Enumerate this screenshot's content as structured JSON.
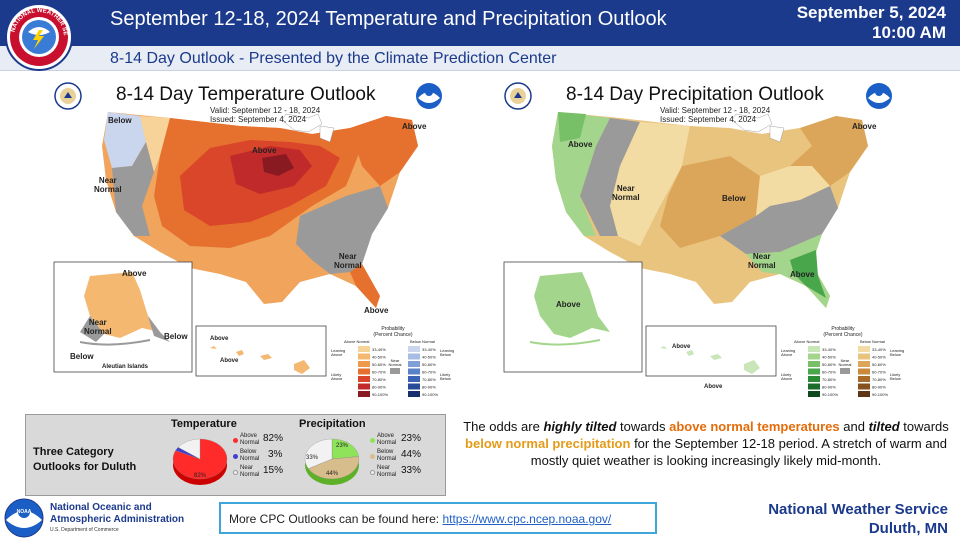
{
  "header": {
    "title": "September 12-18, 2024 Temperature  and Precipitation Outlook",
    "date": "September 5, 2024",
    "time": "10:00 AM",
    "subtitle": "8-14 Day Outlook - Presented by the Climate Prediction Center",
    "logo_text": "NATIONAL WEATHER SERVICE"
  },
  "temp_map": {
    "title": "8-14 Day Temperature Outlook",
    "valid": "Valid:  September 12 - 18, 2024",
    "issued": "Issued:  September 4, 2024",
    "labels": {
      "below_nw": "Below",
      "near_w": "Near\nNormal",
      "above_mw": "Above",
      "above_ne": "Above",
      "near_se": "Near\nNormal",
      "above_fl": "Above",
      "ak_above": "Above",
      "ak_near": "Near\nNormal",
      "ak_below_s": "Below",
      "ak_below_e": "Below",
      "aleutian": "Aleutian Islands",
      "hi_above_1": "Above",
      "hi_above_2": "Above"
    },
    "legend": {
      "title": "Probability\n(Percent Chance)",
      "left_head": "Above Normal",
      "right_head": "Below Normal",
      "near": "Near\nNormal",
      "leaning_above": "Leaning\nAbove",
      "likely_above": "Likely\nAbove",
      "leaning_below": "Leaning\nBelow",
      "likely_below": "Likely\nBelow",
      "steps": [
        "33-40%",
        "40-50%",
        "50-60%",
        "60-70%",
        "70-80%",
        "80-90%",
        "90-100%"
      ],
      "above_colors": [
        "#f7d39a",
        "#f4b870",
        "#ef9a4a",
        "#e6702e",
        "#d9462a",
        "#c02a2a",
        "#8a1a22"
      ],
      "below_colors": [
        "#c9d6ee",
        "#a8bde4",
        "#7f9fd6",
        "#5a82c8",
        "#3a63b3",
        "#274b96",
        "#182f6e"
      ]
    }
  },
  "precip_map": {
    "title": "8-14 Day Precipitation Outlook",
    "valid": "Valid:  September 12 - 18, 2024",
    "issued": "Issued:  September 4, 2024",
    "labels": {
      "above_nw": "Above",
      "near_w": "Near\nNormal",
      "below_c": "Below",
      "above_ne": "Above",
      "near_se": "Near\nNormal",
      "above_se": "Above",
      "ak_above": "Above",
      "hi_above_1": "Above",
      "hi_above_2": "Above"
    },
    "legend": {
      "title": "Probability\n(Percent Chance)",
      "left_head": "Above Normal",
      "right_head": "Below Normal",
      "near": "Near\nNormal",
      "leaning_above": "Leaning\nAbove",
      "likely_above": "Likely\nAbove",
      "leaning_below": "Leaning\nBelow",
      "likely_below": "Likely\nBelow",
      "steps": [
        "33-40%",
        "40-50%",
        "50-60%",
        "60-70%",
        "70-80%",
        "80-90%",
        "90-100%"
      ],
      "above_colors": [
        "#c8e6b8",
        "#a3d68c",
        "#77c067",
        "#4aa64a",
        "#2b8a36",
        "#1b6b2a",
        "#0f4a1e"
      ],
      "below_colors": [
        "#f3dca3",
        "#e9c47e",
        "#dca65a",
        "#c98a3c",
        "#a86b2a",
        "#87511f",
        "#5e3614"
      ]
    }
  },
  "duluth": {
    "caption": "Three Category\nOutlooks for Duluth",
    "temperature": {
      "title": "Temperature",
      "slices": [
        {
          "label": "Above Normal",
          "value": 82,
          "color": "#ff2b2b"
        },
        {
          "label": "Below Normal",
          "value": 3,
          "color": "#4040d0"
        },
        {
          "label": "Near Normal",
          "value": 15,
          "color": "#f2f2f2"
        }
      ],
      "pct_labels": [
        "82%",
        "3%",
        "15%"
      ],
      "inner_label": "82%"
    },
    "precipitation": {
      "title": "Precipitation",
      "slices": [
        {
          "label": "Above Normal",
          "value": 23,
          "color": "#8fe35a"
        },
        {
          "label": "Below Normal",
          "value": 44,
          "color": "#d8bd8c"
        },
        {
          "label": "Near Normal",
          "value": 33,
          "color": "#f2f2f2"
        }
      ],
      "pct_labels": [
        "23%",
        "44%",
        "33%"
      ],
      "inner_labels": [
        "23%",
        "44%",
        "33%"
      ]
    }
  },
  "summary": {
    "p1": "The odds are ",
    "p2": "highly tilted",
    "p3": " towards ",
    "p4": "above normal temperatures",
    "p5": " and ",
    "p6": "tilted",
    "p7": " towards ",
    "p8": "below normal precipitation",
    "p9": " for the September 12-18 period. A stretch of warm and mostly quiet weather is looking increasingly likely mid-month."
  },
  "footer": {
    "noaa_line1": "National Oceanic and",
    "noaa_line2": "Atmospheric Administration",
    "noaa_dept": "U.S. Department of Commerce",
    "link_prefix": "More CPC Outlooks can be found here: ",
    "link_url": "https://www.cpc.ncep.noaa.gov/",
    "nws_line1": "National Weather Service",
    "nws_line2": "Duluth, MN"
  },
  "colors": {
    "header_bg": "#1b3a8c",
    "accent_orange": "#e46c0a",
    "accent_tan": "#e39b1a",
    "link_border": "#3ea6d9"
  }
}
